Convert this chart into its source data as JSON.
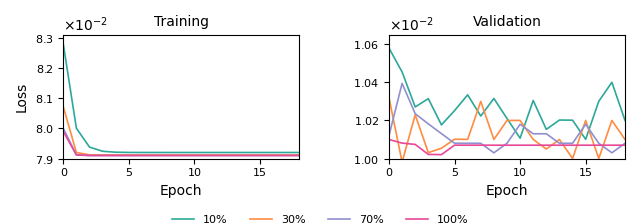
{
  "title_left": "Training",
  "title_right": "Validation",
  "xlabel": "Epoch",
  "ylabel": "Loss",
  "legend_labels": [
    "10%",
    "30%",
    "70%",
    "100%"
  ],
  "colors": [
    "#2ca89a",
    "#ff8c42",
    "#9090d0",
    "#e84898"
  ],
  "epochs": 19,
  "font_size": 10
}
